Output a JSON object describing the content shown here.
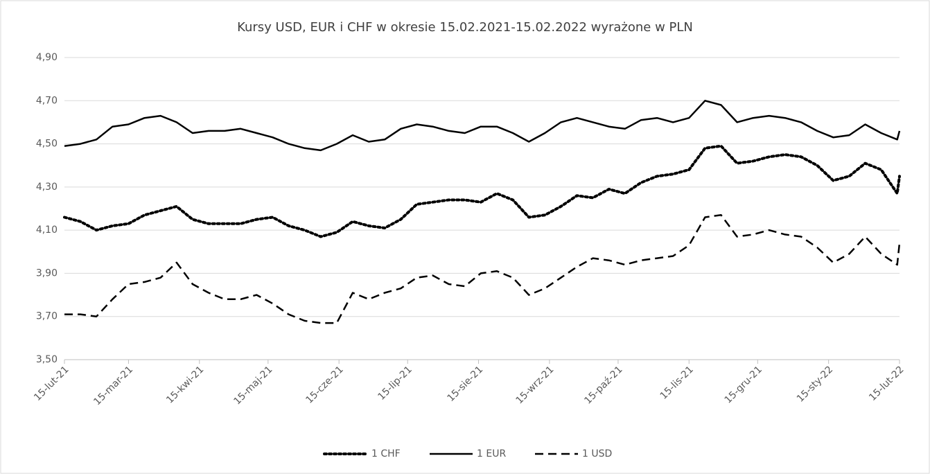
{
  "chart_data": {
    "type": "line",
    "title": "Kursy USD, EUR i CHF w okresie 15.02.2021-15.02.2022 wyrażone w PLN",
    "x": [
      "2021-02-15",
      "2021-02-22",
      "2021-03-01",
      "2021-03-08",
      "2021-03-15",
      "2021-03-22",
      "2021-03-29",
      "2021-04-05",
      "2021-04-12",
      "2021-04-19",
      "2021-04-26",
      "2021-05-03",
      "2021-05-10",
      "2021-05-17",
      "2021-05-24",
      "2021-05-31",
      "2021-06-07",
      "2021-06-14",
      "2021-06-21",
      "2021-06-28",
      "2021-07-05",
      "2021-07-12",
      "2021-07-19",
      "2021-07-26",
      "2021-08-02",
      "2021-08-09",
      "2021-08-16",
      "2021-08-23",
      "2021-08-30",
      "2021-09-06",
      "2021-09-13",
      "2021-09-20",
      "2021-09-27",
      "2021-10-04",
      "2021-10-11",
      "2021-10-18",
      "2021-10-25",
      "2021-11-01",
      "2021-11-08",
      "2021-11-15",
      "2021-11-22",
      "2021-11-29",
      "2021-12-06",
      "2021-12-13",
      "2021-12-20",
      "2021-12-27",
      "2022-01-03",
      "2022-01-10",
      "2022-01-17",
      "2022-01-24",
      "2022-01-31",
      "2022-02-07",
      "2022-02-14",
      "2022-02-15"
    ],
    "series": [
      {
        "name": "1 CHF",
        "color": "#000000",
        "dash": "dotted",
        "values": [
          4.16,
          4.14,
          4.1,
          4.12,
          4.13,
          4.17,
          4.19,
          4.21,
          4.15,
          4.13,
          4.13,
          4.13,
          4.15,
          4.16,
          4.12,
          4.1,
          4.07,
          4.09,
          4.14,
          4.12,
          4.11,
          4.15,
          4.22,
          4.23,
          4.24,
          4.24,
          4.23,
          4.27,
          4.24,
          4.16,
          4.17,
          4.21,
          4.26,
          4.25,
          4.29,
          4.27,
          4.32,
          4.35,
          4.36,
          4.38,
          4.48,
          4.49,
          4.41,
          4.42,
          4.44,
          4.45,
          4.44,
          4.4,
          4.33,
          4.35,
          4.41,
          4.38,
          4.27,
          4.35
        ]
      },
      {
        "name": "1 EUR",
        "color": "#000000",
        "dash": "solid",
        "values": [
          4.49,
          4.5,
          4.52,
          4.58,
          4.59,
          4.62,
          4.63,
          4.6,
          4.55,
          4.56,
          4.56,
          4.57,
          4.55,
          4.53,
          4.5,
          4.48,
          4.47,
          4.5,
          4.54,
          4.51,
          4.52,
          4.57,
          4.59,
          4.58,
          4.56,
          4.55,
          4.58,
          4.58,
          4.55,
          4.51,
          4.55,
          4.6,
          4.62,
          4.6,
          4.58,
          4.57,
          4.61,
          4.62,
          4.6,
          4.62,
          4.7,
          4.68,
          4.6,
          4.62,
          4.63,
          4.62,
          4.6,
          4.56,
          4.53,
          4.54,
          4.59,
          4.55,
          4.52,
          4.56
        ]
      },
      {
        "name": "1 USD",
        "color": "#000000",
        "dash": "dashed",
        "values": [
          3.71,
          3.71,
          3.7,
          3.78,
          3.85,
          3.86,
          3.88,
          3.95,
          3.85,
          3.81,
          3.78,
          3.78,
          3.8,
          3.76,
          3.71,
          3.68,
          3.67,
          3.67,
          3.81,
          3.78,
          3.81,
          3.83,
          3.88,
          3.89,
          3.85,
          3.84,
          3.9,
          3.91,
          3.88,
          3.8,
          3.83,
          3.88,
          3.93,
          3.97,
          3.96,
          3.94,
          3.96,
          3.97,
          3.98,
          4.03,
          4.16,
          4.17,
          4.07,
          4.08,
          4.1,
          4.08,
          4.07,
          4.02,
          3.95,
          3.99,
          4.07,
          3.99,
          3.94,
          4.04
        ]
      }
    ],
    "xlim": [
      "2021-02-15",
      "2022-02-15"
    ],
    "xticks": [
      {
        "value": "2021-02-15",
        "label": "15-lut-21"
      },
      {
        "value": "2021-03-15",
        "label": "15-mar-21"
      },
      {
        "value": "2021-04-15",
        "label": "15-kwi-21"
      },
      {
        "value": "2021-05-15",
        "label": "15-maj-21"
      },
      {
        "value": "2021-06-15",
        "label": "15-cze-21"
      },
      {
        "value": "2021-07-15",
        "label": "15-lip-21"
      },
      {
        "value": "2021-08-15",
        "label": "15-sie-21"
      },
      {
        "value": "2021-09-15",
        "label": "15-wrz-21"
      },
      {
        "value": "2021-10-15",
        "label": "15-paź-21"
      },
      {
        "value": "2021-11-15",
        "label": "15-lis-21"
      },
      {
        "value": "2021-12-15",
        "label": "15-gru-21"
      },
      {
        "value": "2022-01-15",
        "label": "15-sty-22"
      },
      {
        "value": "2022-02-15",
        "label": "15-lut-22"
      }
    ],
    "ylim": [
      3.5,
      4.9
    ],
    "yticks": [
      {
        "value": 3.5,
        "label": "3,50"
      },
      {
        "value": 3.7,
        "label": "3,70"
      },
      {
        "value": 3.9,
        "label": "3,90"
      },
      {
        "value": 4.1,
        "label": "4,10"
      },
      {
        "value": 4.3,
        "label": "4,30"
      },
      {
        "value": 4.5,
        "label": "4,50"
      },
      {
        "value": 4.7,
        "label": "4,70"
      },
      {
        "value": 4.9,
        "label": "4,90"
      }
    ],
    "grid": true,
    "legend": "bottom"
  }
}
